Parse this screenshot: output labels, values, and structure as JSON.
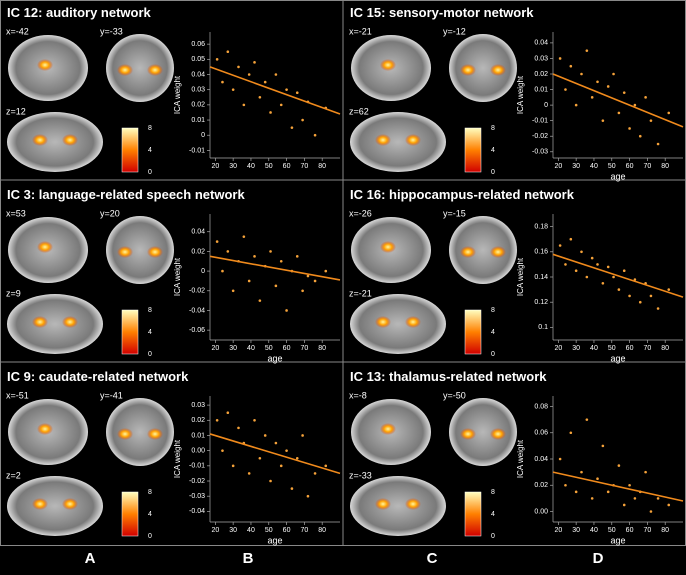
{
  "panels": [
    {
      "title": "IC 12: auditory network",
      "slices": [
        "x=-42",
        "y=-33",
        "z=12"
      ]
    },
    {
      "title": "IC 15: sensory-motor network",
      "slices": [
        "x=-21",
        "y=-12",
        "z=62"
      ]
    },
    {
      "title": "IC 3: language-related speech network",
      "slices": [
        "x=53",
        "y=20",
        "z=9"
      ]
    },
    {
      "title": "IC 16: hippocampus-related network",
      "slices": [
        "x=-26",
        "y=-15",
        "z=-21"
      ]
    },
    {
      "title": "IC 9: caudate-related network",
      "slices": [
        "x=-51",
        "y=-41",
        "z=2"
      ]
    },
    {
      "title": "IC 13: thalamus-related network",
      "slices": [
        "x=-8",
        "y=-50",
        "z=-33"
      ]
    }
  ],
  "colorbar": {
    "range": [
      0,
      8
    ],
    "ticks": [
      0,
      4,
      8
    ]
  },
  "column_labels": [
    "A",
    "B",
    "C",
    "D"
  ],
  "chart_data": [
    {
      "type": "scatter",
      "ylabel": "ICA weight",
      "color": "#f5a23a",
      "xlim": [
        17,
        90
      ],
      "xticks": [
        20,
        30,
        40,
        50,
        60,
        70,
        80
      ],
      "ylim": [
        -0.015,
        0.068
      ],
      "yticks": [
        -0.01,
        0,
        0.01,
        0.02,
        0.03,
        0.04,
        0.05,
        0.06
      ],
      "x": [
        21,
        24,
        27,
        30,
        33,
        36,
        39,
        42,
        45,
        48,
        51,
        54,
        57,
        60,
        63,
        66,
        69,
        72,
        76,
        82
      ],
      "y": [
        0.05,
        0.035,
        0.055,
        0.03,
        0.045,
        0.02,
        0.04,
        0.048,
        0.025,
        0.035,
        0.015,
        0.04,
        0.02,
        0.03,
        0.005,
        0.028,
        0.01,
        0.022,
        0.0,
        0.018
      ],
      "trend_line": {
        "color": "#f08a1c",
        "x": [
          17,
          90
        ],
        "y": [
          0.045,
          0.014
        ]
      }
    },
    {
      "type": "scatter",
      "ylabel": "ICA weight",
      "xlabel": "age",
      "color": "#f5a23a",
      "xlim": [
        17,
        90
      ],
      "xticks": [
        20,
        30,
        40,
        50,
        60,
        70,
        80
      ],
      "ylim": [
        -0.034,
        0.047
      ],
      "yticks": [
        -0.03,
        -0.02,
        -0.01,
        0,
        0.01,
        0.02,
        0.03,
        0.04
      ],
      "x": [
        21,
        24,
        27,
        30,
        33,
        36,
        39,
        42,
        45,
        48,
        51,
        54,
        57,
        60,
        63,
        66,
        69,
        72,
        76,
        82
      ],
      "y": [
        0.03,
        0.01,
        0.025,
        0.0,
        0.02,
        0.035,
        0.005,
        0.015,
        -0.01,
        0.012,
        0.02,
        -0.005,
        0.008,
        -0.015,
        0.0,
        -0.02,
        0.005,
        -0.01,
        -0.025,
        -0.005
      ],
      "trend_line": {
        "color": "#f08a1c",
        "x": [
          17,
          90
        ],
        "y": [
          0.02,
          -0.014
        ]
      }
    },
    {
      "type": "scatter",
      "ylabel": "ICA weight",
      "xlabel": "age",
      "color": "#f5a23a",
      "xlim": [
        17,
        90
      ],
      "xticks": [
        20,
        30,
        40,
        50,
        60,
        70,
        80
      ],
      "ylim": [
        -0.07,
        0.058
      ],
      "yticks": [
        -0.06,
        -0.04,
        -0.02,
        0,
        0.02,
        0.04
      ],
      "x": [
        21,
        24,
        27,
        30,
        33,
        36,
        39,
        42,
        45,
        48,
        51,
        54,
        57,
        60,
        63,
        66,
        69,
        72,
        76,
        82
      ],
      "y": [
        0.03,
        0.0,
        0.02,
        -0.02,
        0.01,
        0.035,
        -0.01,
        0.015,
        -0.03,
        0.005,
        0.02,
        -0.015,
        0.01,
        -0.04,
        0.0,
        0.015,
        -0.02,
        -0.005,
        -0.01,
        0.0
      ],
      "trend_line": {
        "color": "#f08a1c",
        "x": [
          17,
          90
        ],
        "y": [
          0.015,
          -0.009
        ]
      }
    },
    {
      "type": "scatter",
      "ylabel": "ICA weight",
      "xlabel": "age",
      "color": "#f5a23a",
      "xlim": [
        17,
        90
      ],
      "xticks": [
        20,
        30,
        40,
        50,
        60,
        70,
        80
      ],
      "ylim": [
        0.09,
        0.19
      ],
      "yticks": [
        0.1,
        0.12,
        0.14,
        0.16,
        0.18
      ],
      "x": [
        21,
        24,
        27,
        30,
        33,
        36,
        39,
        42,
        45,
        48,
        51,
        54,
        57,
        60,
        63,
        66,
        69,
        72,
        76,
        82
      ],
      "y": [
        0.165,
        0.15,
        0.17,
        0.145,
        0.16,
        0.14,
        0.155,
        0.15,
        0.135,
        0.148,
        0.14,
        0.13,
        0.145,
        0.125,
        0.138,
        0.12,
        0.135,
        0.125,
        0.115,
        0.13
      ],
      "trend_line": {
        "color": "#f08a1c",
        "x": [
          17,
          90
        ],
        "y": [
          0.158,
          0.124
        ]
      }
    },
    {
      "type": "scatter",
      "ylabel": "ICA weight",
      "xlabel": "age",
      "color": "#f5a23a",
      "xlim": [
        17,
        90
      ],
      "xticks": [
        20,
        30,
        40,
        50,
        60,
        70,
        80
      ],
      "ylim": [
        -0.047,
        0.036
      ],
      "yticks": [
        -0.04,
        -0.03,
        -0.02,
        -0.01,
        {
          "value": 0,
          "label": "0.00"
        },
        0.01,
        0.02,
        0.03
      ],
      "x": [
        21,
        24,
        27,
        30,
        33,
        36,
        39,
        42,
        45,
        48,
        51,
        54,
        57,
        60,
        63,
        66,
        69,
        72,
        76,
        82
      ],
      "y": [
        0.02,
        0.0,
        0.025,
        -0.01,
        0.015,
        0.005,
        -0.015,
        0.02,
        -0.005,
        0.01,
        -0.02,
        0.005,
        -0.01,
        0.0,
        -0.025,
        -0.005,
        0.01,
        -0.03,
        -0.015,
        -0.01
      ],
      "trend_line": {
        "color": "#f08a1c",
        "x": [
          17,
          90
        ],
        "y": [
          0.011,
          -0.015
        ]
      }
    },
    {
      "type": "scatter",
      "ylabel": "ICA weight",
      "xlabel": "age",
      "color": "#f5a23a",
      "xlim": [
        17,
        90
      ],
      "xticks": [
        20,
        30,
        40,
        50,
        60,
        70,
        80
      ],
      "ylim": [
        -0.008,
        0.088
      ],
      "yticks": [
        {
          "value": 0,
          "label": "0.00"
        },
        0.02,
        0.04,
        0.06,
        0.08
      ],
      "x": [
        21,
        24,
        27,
        30,
        33,
        36,
        39,
        42,
        45,
        48,
        51,
        54,
        57,
        60,
        63,
        66,
        69,
        72,
        76,
        82
      ],
      "y": [
        0.04,
        0.02,
        0.06,
        0.015,
        0.03,
        0.07,
        0.01,
        0.025,
        0.05,
        0.015,
        0.02,
        0.035,
        0.005,
        0.02,
        0.01,
        0.015,
        0.03,
        0.0,
        0.01,
        0.005
      ],
      "trend_line": {
        "color": "#f08a1c",
        "x": [
          17,
          90
        ],
        "y": [
          0.03,
          0.008
        ]
      }
    }
  ]
}
